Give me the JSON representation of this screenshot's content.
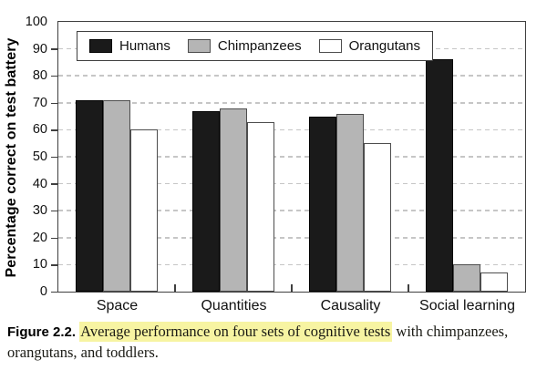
{
  "figure": {
    "caption": {
      "label": "Figure 2.2.",
      "highlight_text": "Average performance on four sets of cognitive tests",
      "after_highlight_line1": " with chimpanzees,",
      "line2": "orangutans, and toddlers.",
      "highlight_color": "#f7f4a2"
    }
  },
  "chart_data": {
    "type": "bar",
    "title": "",
    "xlabel": "",
    "ylabel": "Percentage correct on test battery",
    "ylim": [
      0,
      100
    ],
    "yticks": [
      0,
      10,
      20,
      30,
      40,
      50,
      60,
      70,
      80,
      90,
      100
    ],
    "grid": "horizontal dashed gridlines at each 10 from 10 to 90",
    "legend_position": "top-left inside plot, horizontal",
    "categories": [
      "Space",
      "Quantities",
      "Causality",
      "Social learning"
    ],
    "series": [
      {
        "name": "Humans",
        "fill": "#1a1a1a",
        "border": "#000000",
        "values": [
          71,
          67,
          65,
          86
        ]
      },
      {
        "name": "Chimpanzees",
        "fill": "#b5b5b5",
        "border": "#4d4d4d",
        "values": [
          71,
          68,
          66,
          10
        ]
      },
      {
        "name": "Orangutans",
        "fill": "#ffffff",
        "border": "#4d4d4d",
        "values": [
          60,
          63,
          55,
          7
        ]
      }
    ],
    "colors": {
      "axis": "#3f3f3f",
      "gridline": "#c6c6c6",
      "text": "#111111"
    }
  }
}
